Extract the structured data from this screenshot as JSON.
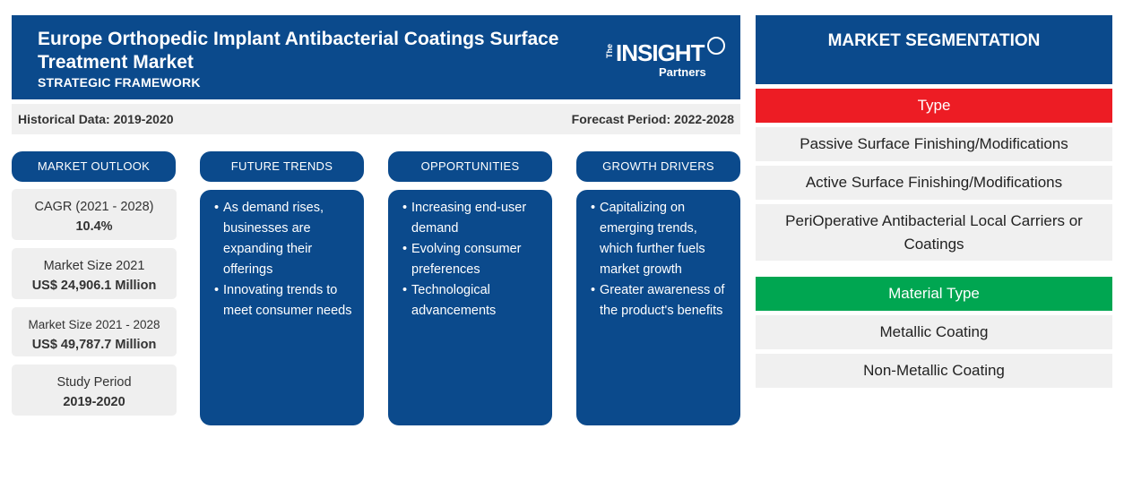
{
  "header": {
    "title": "Europe Orthopedic Implant Antibacterial Coatings Surface Treatment Market",
    "subtitle": "STRATEGIC FRAMEWORK",
    "logo": {
      "the": "The",
      "insight": "INSIGHT",
      "partners": "Partners"
    }
  },
  "periods": {
    "historical": "Historical Data: 2019-2020",
    "forecast": "Forecast Period: 2022-2028"
  },
  "columns": {
    "market_outlook": "MARKET OUTLOOK",
    "future_trends": "FUTURE TRENDS",
    "opportunities": "OPPORTUNITIES",
    "growth_drivers": "GROWTH DRIVERS"
  },
  "outlook": [
    {
      "label": "CAGR (2021 - 2028)",
      "value": "10.4%"
    },
    {
      "label": "Market Size 2021",
      "value": "US$ 24,906.1 Million"
    },
    {
      "label": "Market Size 2021 - 2028",
      "value": "US$ 49,787.7 Million"
    },
    {
      "label": "Study Period",
      "value": "2019-2020"
    }
  ],
  "future_trends": [
    "As demand rises, businesses are expanding their offerings",
    "Innovating trends to meet consumer needs"
  ],
  "opportunities": [
    "Increasing end-user demand",
    "Evolving consumer preferences",
    "Technological advancements"
  ],
  "growth_drivers": [
    "Capitalizing on emerging trends, which further fuels market growth",
    "Greater awareness of the product's benefits"
  ],
  "segmentation": {
    "title": "MARKET SEGMENTATION",
    "type": {
      "label": "Type",
      "color": "#ed1c24",
      "items": [
        "Passive Surface Finishing/Modifications",
        "Active Surface Finishing/Modifications",
        "PeriOperative Antibacterial Local Carriers or Coatings"
      ]
    },
    "material_type": {
      "label": "Material Type",
      "color": "#00a651",
      "items": [
        "Metallic Coating",
        "Non-Metallic Coating"
      ]
    }
  }
}
